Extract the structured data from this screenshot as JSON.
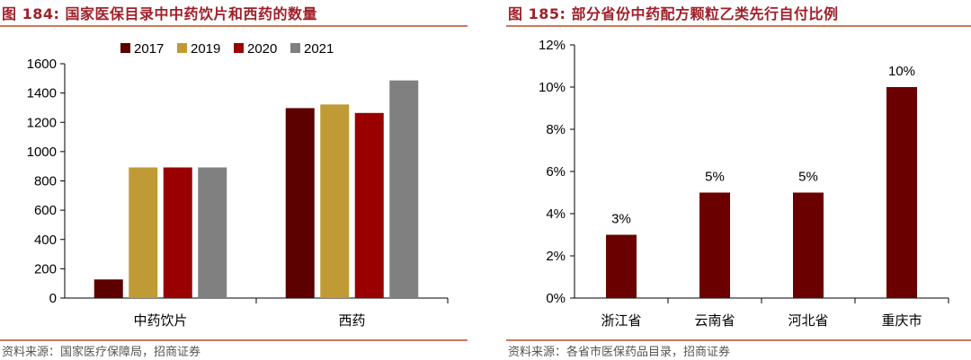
{
  "left": {
    "title": "图 184:  国家医保目录中中药饮片和西药的数量",
    "source": "资料来源：国家医疗保障局，招商证券"
  },
  "right": {
    "title": "图 185:  部分省份中药配方颗粒乙类先行自付比例",
    "source": "资料来源：各省市医保药品目录，招商证券"
  },
  "chart_data": [
    {
      "type": "bar",
      "title": "图 184:  国家医保目录中中药饮片和西药的数量",
      "categories": [
        "中药饮片",
        "西药"
      ],
      "series": [
        {
          "name": "2017",
          "color": "#5c0000",
          "values": [
            127,
            1297
          ]
        },
        {
          "name": "2019",
          "color": "#c09a35",
          "values": [
            892,
            1322
          ]
        },
        {
          "name": "2020",
          "color": "#9a0000",
          "values": [
            892,
            1264
          ]
        },
        {
          "name": "2021",
          "color": "#808080",
          "values": [
            892,
            1486
          ]
        }
      ],
      "yticks": [
        "0",
        "200",
        "400",
        "600",
        "800",
        "1000",
        "1200",
        "1400",
        "1600"
      ],
      "ylim": [
        0,
        1600
      ],
      "legend": "top",
      "grid": false
    },
    {
      "type": "bar",
      "title": "图 185:  部分省份中药配方颗粒乙类先行自付比例",
      "categories": [
        "浙江省",
        "云南省",
        "河北省",
        "重庆市"
      ],
      "values": [
        3,
        5,
        5,
        10
      ],
      "data_labels": [
        "3%",
        "5%",
        "5%",
        "10%"
      ],
      "color": "#6b0000",
      "yticks": [
        "0%",
        "2%",
        "4%",
        "6%",
        "8%",
        "10%",
        "12%"
      ],
      "ylim": [
        0,
        12
      ],
      "unit": "%",
      "grid": false
    }
  ]
}
